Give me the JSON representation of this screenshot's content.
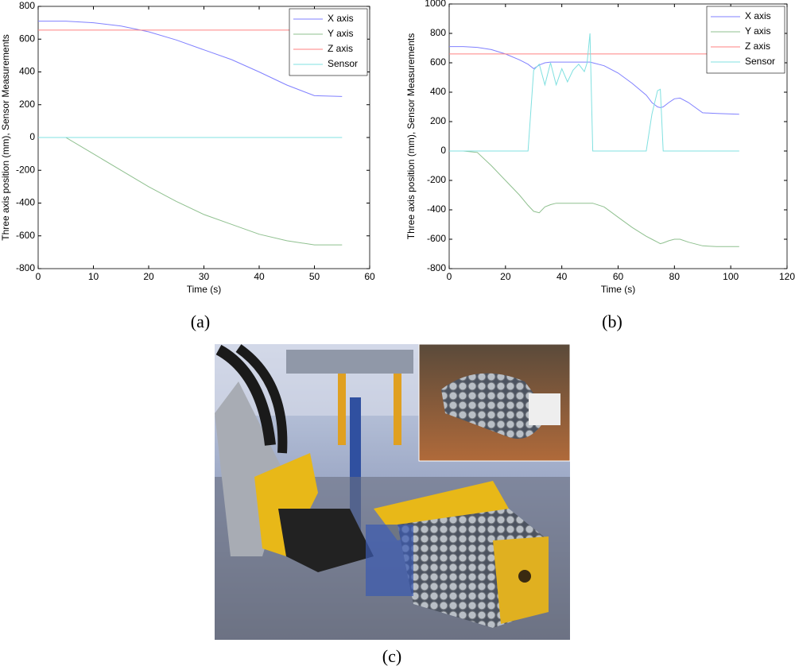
{
  "chart_data": [
    {
      "type": "line",
      "xlabel": "Time (s)",
      "ylabel": "Three axis position (mm), Sensor Measurements",
      "x": [
        0,
        5,
        10,
        15,
        20,
        25,
        30,
        35,
        40,
        45,
        50,
        55
      ],
      "series": [
        {
          "name": "X axis",
          "color": "#8080ff",
          "values": [
            710,
            710,
            700,
            680,
            645,
            595,
            535,
            475,
            400,
            320,
            255,
            250
          ]
        },
        {
          "name": "Y axis",
          "color": "#8fc08f",
          "values": [
            0,
            0,
            -100,
            -200,
            -300,
            -390,
            -470,
            -530,
            -590,
            -630,
            -655,
            -655
          ]
        },
        {
          "name": "Z axis",
          "color": "#ff8080",
          "values": [
            655,
            655,
            655,
            655,
            655,
            655,
            655,
            655,
            655,
            655,
            655,
            655
          ]
        },
        {
          "name": "Sensor",
          "color": "#80e0e0",
          "values": [
            0,
            0,
            0,
            0,
            0,
            0,
            0,
            0,
            0,
            0,
            0,
            0
          ]
        }
      ],
      "xlim": [
        0,
        60
      ],
      "xticks": [
        0,
        10,
        20,
        30,
        40,
        50,
        60
      ],
      "ylim": [
        -800,
        800
      ],
      "yticks": [
        -800,
        -600,
        -400,
        -200,
        0,
        200,
        400,
        600,
        800
      ],
      "grid": false,
      "legend": "upper right"
    },
    {
      "type": "line",
      "xlabel": "Time (s)",
      "ylabel": "Three axis position (mm), Sensor Measurements",
      "x": [
        0,
        5,
        10,
        15,
        20,
        25,
        28,
        30,
        32,
        34,
        36,
        38,
        40,
        42,
        44,
        46,
        48,
        49,
        50,
        51,
        55,
        60,
        65,
        70,
        72,
        74,
        75,
        76,
        78,
        80,
        82,
        85,
        90,
        95,
        103
      ],
      "series": [
        {
          "name": "X axis",
          "color": "#8080ff",
          "values": [
            710,
            710,
            705,
            690,
            660,
            620,
            590,
            560,
            585,
            600,
            605,
            605,
            605,
            605,
            605,
            605,
            605,
            605,
            605,
            600,
            580,
            530,
            460,
            380,
            330,
            300,
            295,
            300,
            330,
            355,
            360,
            330,
            260,
            255,
            250
          ]
        },
        {
          "name": "Y axis",
          "color": "#8fc08f",
          "values": [
            0,
            0,
            -10,
            -100,
            -200,
            -300,
            -370,
            -410,
            -420,
            -380,
            -365,
            -355,
            -355,
            -355,
            -355,
            -355,
            -355,
            -355,
            -355,
            -355,
            -380,
            -450,
            -520,
            -580,
            -600,
            -620,
            -630,
            -625,
            -610,
            -600,
            -600,
            -620,
            -645,
            -650,
            -650
          ]
        },
        {
          "name": "Z axis",
          "color": "#ff8080",
          "values": [
            660,
            660,
            660,
            660,
            660,
            660,
            660,
            660,
            660,
            660,
            660,
            660,
            660,
            660,
            660,
            660,
            660,
            660,
            660,
            660,
            660,
            660,
            660,
            660,
            660,
            660,
            660,
            660,
            660,
            660,
            660,
            660,
            660,
            660,
            660
          ]
        },
        {
          "name": "Sensor",
          "color": "#80e0e0",
          "values": [
            0,
            0,
            0,
            0,
            0,
            0,
            0,
            550,
            590,
            450,
            600,
            450,
            560,
            470,
            550,
            590,
            540,
            600,
            800,
            0,
            0,
            0,
            0,
            0,
            250,
            410,
            420,
            0,
            0,
            0,
            0,
            0,
            0,
            0,
            0
          ]
        }
      ],
      "xlim": [
        0,
        120
      ],
      "xticks": [
        0,
        20,
        40,
        60,
        80,
        100,
        120
      ],
      "ylim": [
        -800,
        1000
      ],
      "yticks": [
        -800,
        -600,
        -400,
        -200,
        0,
        200,
        400,
        600,
        800,
        1000
      ],
      "grid": false,
      "legend": "upper right"
    }
  ],
  "panel_labels": [
    "(a)",
    "(b)",
    "(c)"
  ]
}
